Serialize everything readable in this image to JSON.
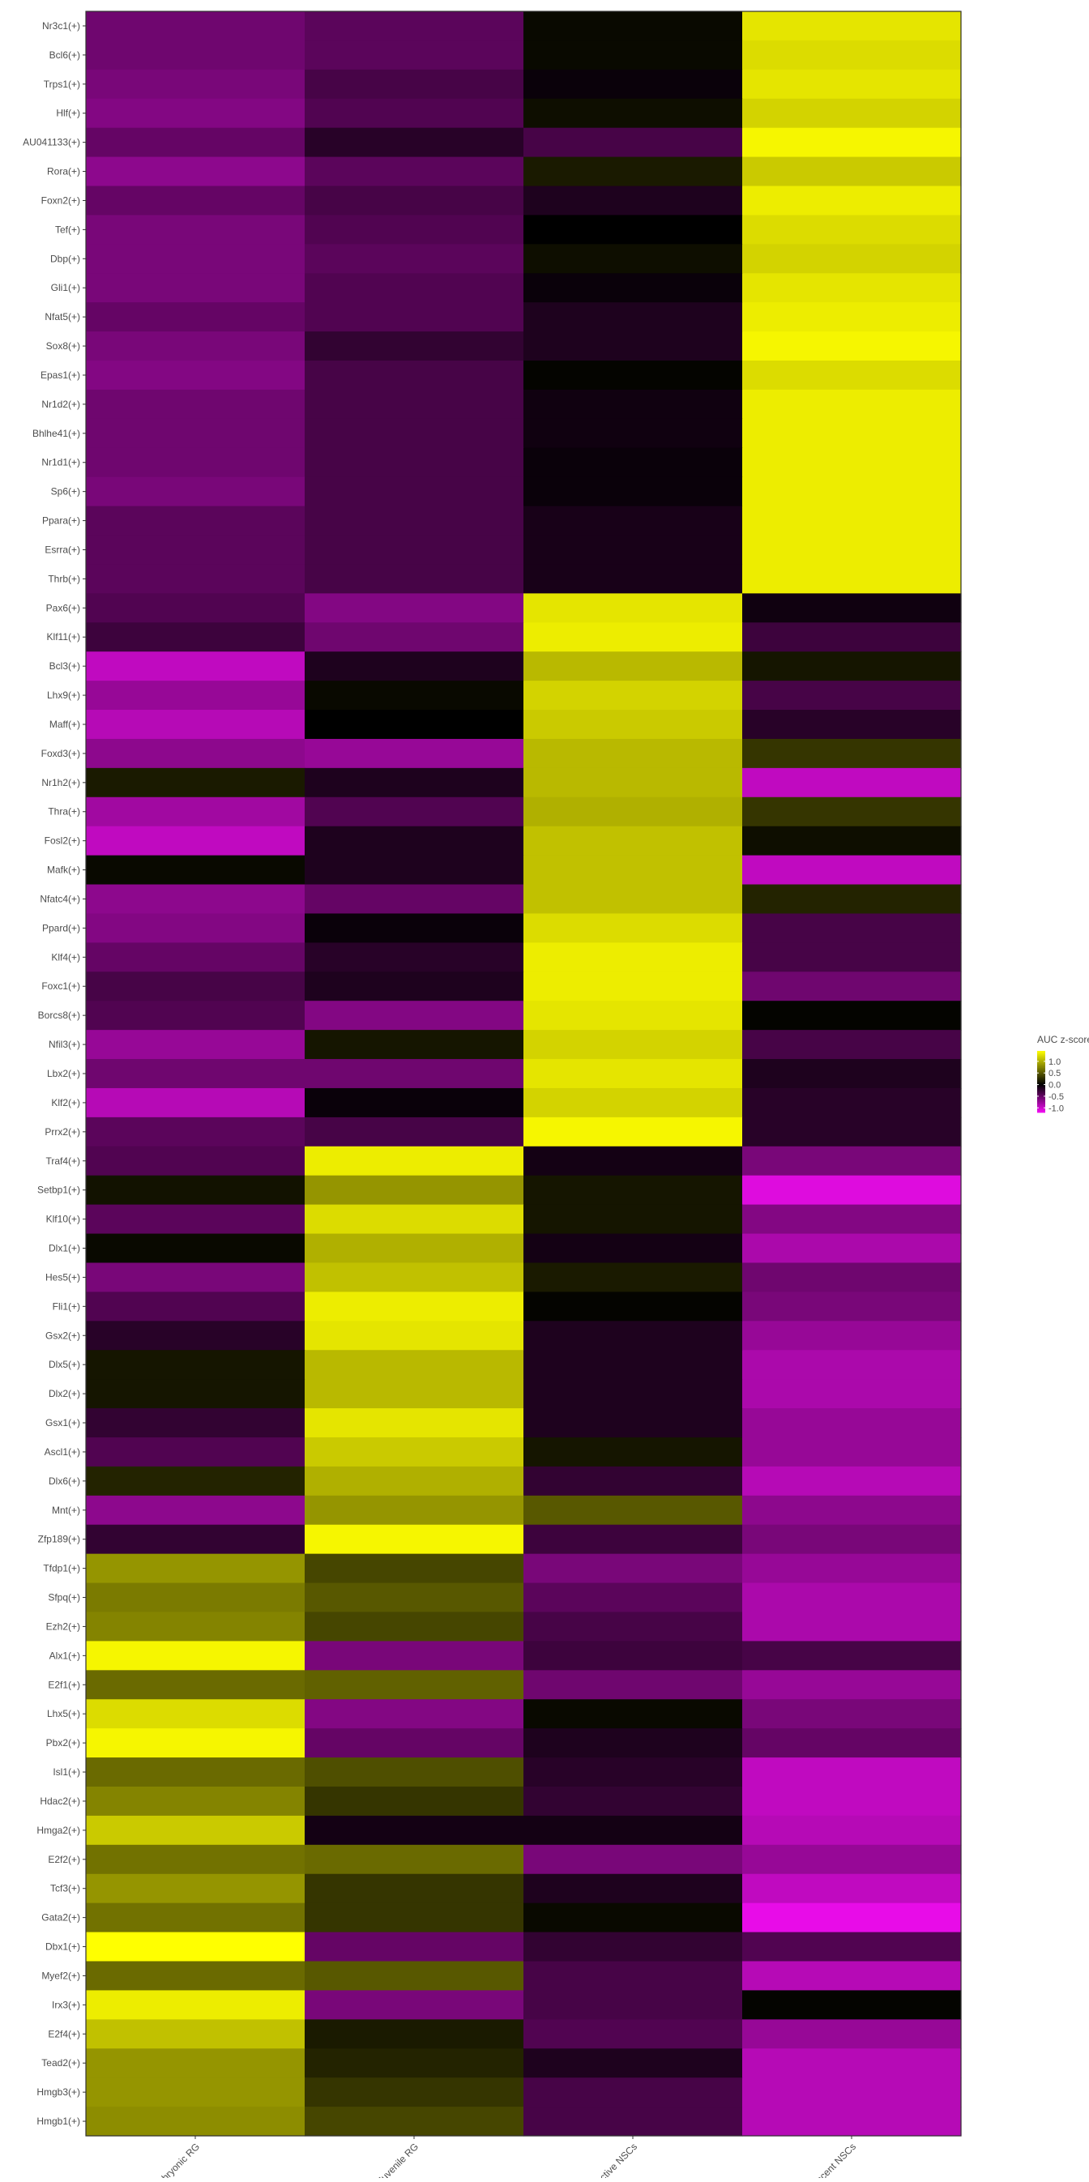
{
  "chart_data": {
    "type": "heatmap",
    "title": "",
    "xlabel": "",
    "ylabel": "",
    "columns": [
      "Embryonic RG",
      "Juvenile RG",
      "Active NSCs",
      "Quiescent NSCs"
    ],
    "rows": [
      "Nr3c1(+)",
      "Bcl6(+)",
      "Trps1(+)",
      "Hlf(+)",
      "AU041133(+)",
      "Rora(+)",
      "Foxn2(+)",
      "Tef(+)",
      "Dbp(+)",
      "Gli1(+)",
      "Nfat5(+)",
      "Sox8(+)",
      "Epas1(+)",
      "Nr1d2(+)",
      "Bhlhe41(+)",
      "Nr1d1(+)",
      "Sp6(+)",
      "Ppara(+)",
      "Esrra(+)",
      "Thrb(+)",
      "Pax6(+)",
      "Klf11(+)",
      "Bcl3(+)",
      "Lhx9(+)",
      "Maff(+)",
      "Foxd3(+)",
      "Nr1h2(+)",
      "Thra(+)",
      "Fosl2(+)",
      "Mafk(+)",
      "Nfatc4(+)",
      "Ppard(+)",
      "Klf4(+)",
      "Foxc1(+)",
      "Borcs8(+)",
      "Nfil3(+)",
      "Lbx2(+)",
      "Klf2(+)",
      "Prrx2(+)",
      "Traf4(+)",
      "Setbp1(+)",
      "Klf10(+)",
      "Dlx1(+)",
      "Hes5(+)",
      "Fli1(+)",
      "Gsx2(+)",
      "Dlx5(+)",
      "Dlx2(+)",
      "Gsx1(+)",
      "Ascl1(+)",
      "Dlx6(+)",
      "Mnt(+)",
      "Zfp189(+)",
      "Tfdp1(+)",
      "Sfpq(+)",
      "Ezh2(+)",
      "Alx1(+)",
      "E2f1(+)",
      "Lhx5(+)",
      "Pbx2(+)",
      "Isl1(+)",
      "Hdac2(+)",
      "Hmga2(+)",
      "E2f2(+)",
      "Tcf3(+)",
      "Gata2(+)",
      "Dbx1(+)",
      "Myef2(+)",
      "Irx3(+)",
      "E2f4(+)",
      "Tead2(+)",
      "Hmgb3(+)",
      "Hmgb1(+)"
    ],
    "values": [
      [
        -0.55,
        -0.45,
        0.05,
        1.3
      ],
      [
        -0.55,
        -0.45,
        0.05,
        1.25
      ],
      [
        -0.6,
        -0.35,
        -0.05,
        1.3
      ],
      [
        -0.65,
        -0.4,
        0.08,
        1.2
      ],
      [
        -0.5,
        -0.2,
        -0.35,
        1.4
      ],
      [
        -0.7,
        -0.45,
        0.15,
        1.15
      ],
      [
        -0.5,
        -0.35,
        -0.15,
        1.35
      ],
      [
        -0.6,
        -0.4,
        0.0,
        1.25
      ],
      [
        -0.6,
        -0.45,
        0.08,
        1.2
      ],
      [
        -0.6,
        -0.4,
        -0.05,
        1.3
      ],
      [
        -0.5,
        -0.4,
        -0.15,
        1.35
      ],
      [
        -0.6,
        -0.25,
        -0.15,
        1.4
      ],
      [
        -0.65,
        -0.35,
        0.02,
        1.25
      ],
      [
        -0.55,
        -0.35,
        -0.08,
        1.35
      ],
      [
        -0.55,
        -0.35,
        -0.08,
        1.35
      ],
      [
        -0.55,
        -0.35,
        -0.05,
        1.35
      ],
      [
        -0.6,
        -0.35,
        -0.05,
        1.35
      ],
      [
        -0.45,
        -0.35,
        -0.12,
        1.35
      ],
      [
        -0.45,
        -0.35,
        -0.12,
        1.35
      ],
      [
        -0.45,
        -0.35,
        -0.12,
        1.35
      ],
      [
        -0.4,
        -0.65,
        1.3,
        -0.08
      ],
      [
        -0.3,
        -0.55,
        1.35,
        -0.3
      ],
      [
        -0.95,
        -0.15,
        1.05,
        0.12
      ],
      [
        -0.75,
        0.05,
        1.2,
        -0.35
      ],
      [
        -0.9,
        0.0,
        1.15,
        -0.2
      ],
      [
        -0.7,
        -0.75,
        1.05,
        0.3
      ],
      [
        0.15,
        -0.15,
        1.05,
        -0.95
      ],
      [
        -0.8,
        -0.4,
        1.0,
        0.3
      ],
      [
        -0.95,
        -0.15,
        1.1,
        0.08
      ],
      [
        0.05,
        -0.15,
        1.1,
        -0.95
      ],
      [
        -0.7,
        -0.5,
        1.1,
        0.2
      ],
      [
        -0.65,
        -0.05,
        1.25,
        -0.35
      ],
      [
        -0.5,
        -0.2,
        1.35,
        -0.35
      ],
      [
        -0.35,
        -0.15,
        1.35,
        -0.55
      ],
      [
        -0.4,
        -0.65,
        1.3,
        0.02
      ],
      [
        -0.75,
        0.12,
        1.2,
        -0.35
      ],
      [
        -0.55,
        -0.55,
        1.3,
        -0.15
      ],
      [
        -0.9,
        -0.05,
        1.2,
        -0.2
      ],
      [
        -0.45,
        -0.35,
        1.4,
        -0.2
      ],
      [
        -0.4,
        1.35,
        -0.1,
        -0.6
      ],
      [
        0.1,
        0.85,
        0.12,
        -1.1
      ],
      [
        -0.45,
        1.25,
        0.12,
        -0.65
      ],
      [
        0.05,
        1.0,
        -0.1,
        -0.85
      ],
      [
        -0.6,
        1.1,
        0.15,
        -0.55
      ],
      [
        -0.4,
        1.35,
        0.02,
        -0.6
      ],
      [
        -0.2,
        1.3,
        -0.15,
        -0.75
      ],
      [
        0.12,
        1.05,
        -0.15,
        -0.85
      ],
      [
        0.12,
        1.05,
        -0.15,
        -0.85
      ],
      [
        -0.25,
        1.3,
        -0.15,
        -0.75
      ],
      [
        -0.4,
        1.15,
        0.12,
        -0.75
      ],
      [
        0.2,
        1.0,
        -0.25,
        -0.9
      ],
      [
        -0.7,
        0.85,
        0.5,
        -0.7
      ],
      [
        -0.25,
        1.4,
        -0.3,
        -0.6
      ],
      [
        0.85,
        0.4,
        -0.6,
        -0.75
      ],
      [
        0.7,
        0.5,
        -0.45,
        -0.85
      ],
      [
        0.75,
        0.4,
        -0.35,
        -0.85
      ],
      [
        1.4,
        -0.6,
        -0.3,
        -0.35
      ],
      [
        0.6,
        0.55,
        -0.55,
        -0.75
      ],
      [
        1.25,
        -0.65,
        0.05,
        -0.6
      ],
      [
        1.4,
        -0.5,
        -0.15,
        -0.5
      ],
      [
        0.6,
        0.45,
        -0.2,
        -0.95
      ],
      [
        0.75,
        0.3,
        -0.25,
        -0.95
      ],
      [
        1.15,
        -0.1,
        -0.1,
        -0.9
      ],
      [
        0.65,
        0.6,
        -0.6,
        -0.75
      ],
      [
        0.85,
        0.3,
        -0.15,
        -0.95
      ],
      [
        0.65,
        0.3,
        0.05,
        -1.15
      ],
      [
        1.45,
        -0.5,
        -0.25,
        -0.4
      ],
      [
        0.6,
        0.5,
        -0.35,
        -0.9
      ],
      [
        1.35,
        -0.6,
        -0.35,
        0.02
      ],
      [
        1.1,
        0.15,
        -0.4,
        -0.75
      ],
      [
        0.85,
        0.2,
        -0.15,
        -0.9
      ],
      [
        0.85,
        0.3,
        -0.35,
        -0.9
      ],
      [
        0.8,
        0.4,
        -0.35,
        -0.9
      ]
    ],
    "legend": {
      "title": "AUC z-score mean",
      "ticks": [
        "1.0",
        "0.5",
        "0.0",
        "-0.5",
        "-1.0"
      ],
      "tick_values": [
        1.0,
        0.5,
        0.0,
        -0.5,
        -1.0
      ],
      "placement": "right"
    },
    "color_scale": {
      "low": "#f20df2",
      "mid": "#000000",
      "high": "#ffff00",
      "domain": [
        -1.2,
        0,
        1.45
      ]
    },
    "grid": false
  }
}
